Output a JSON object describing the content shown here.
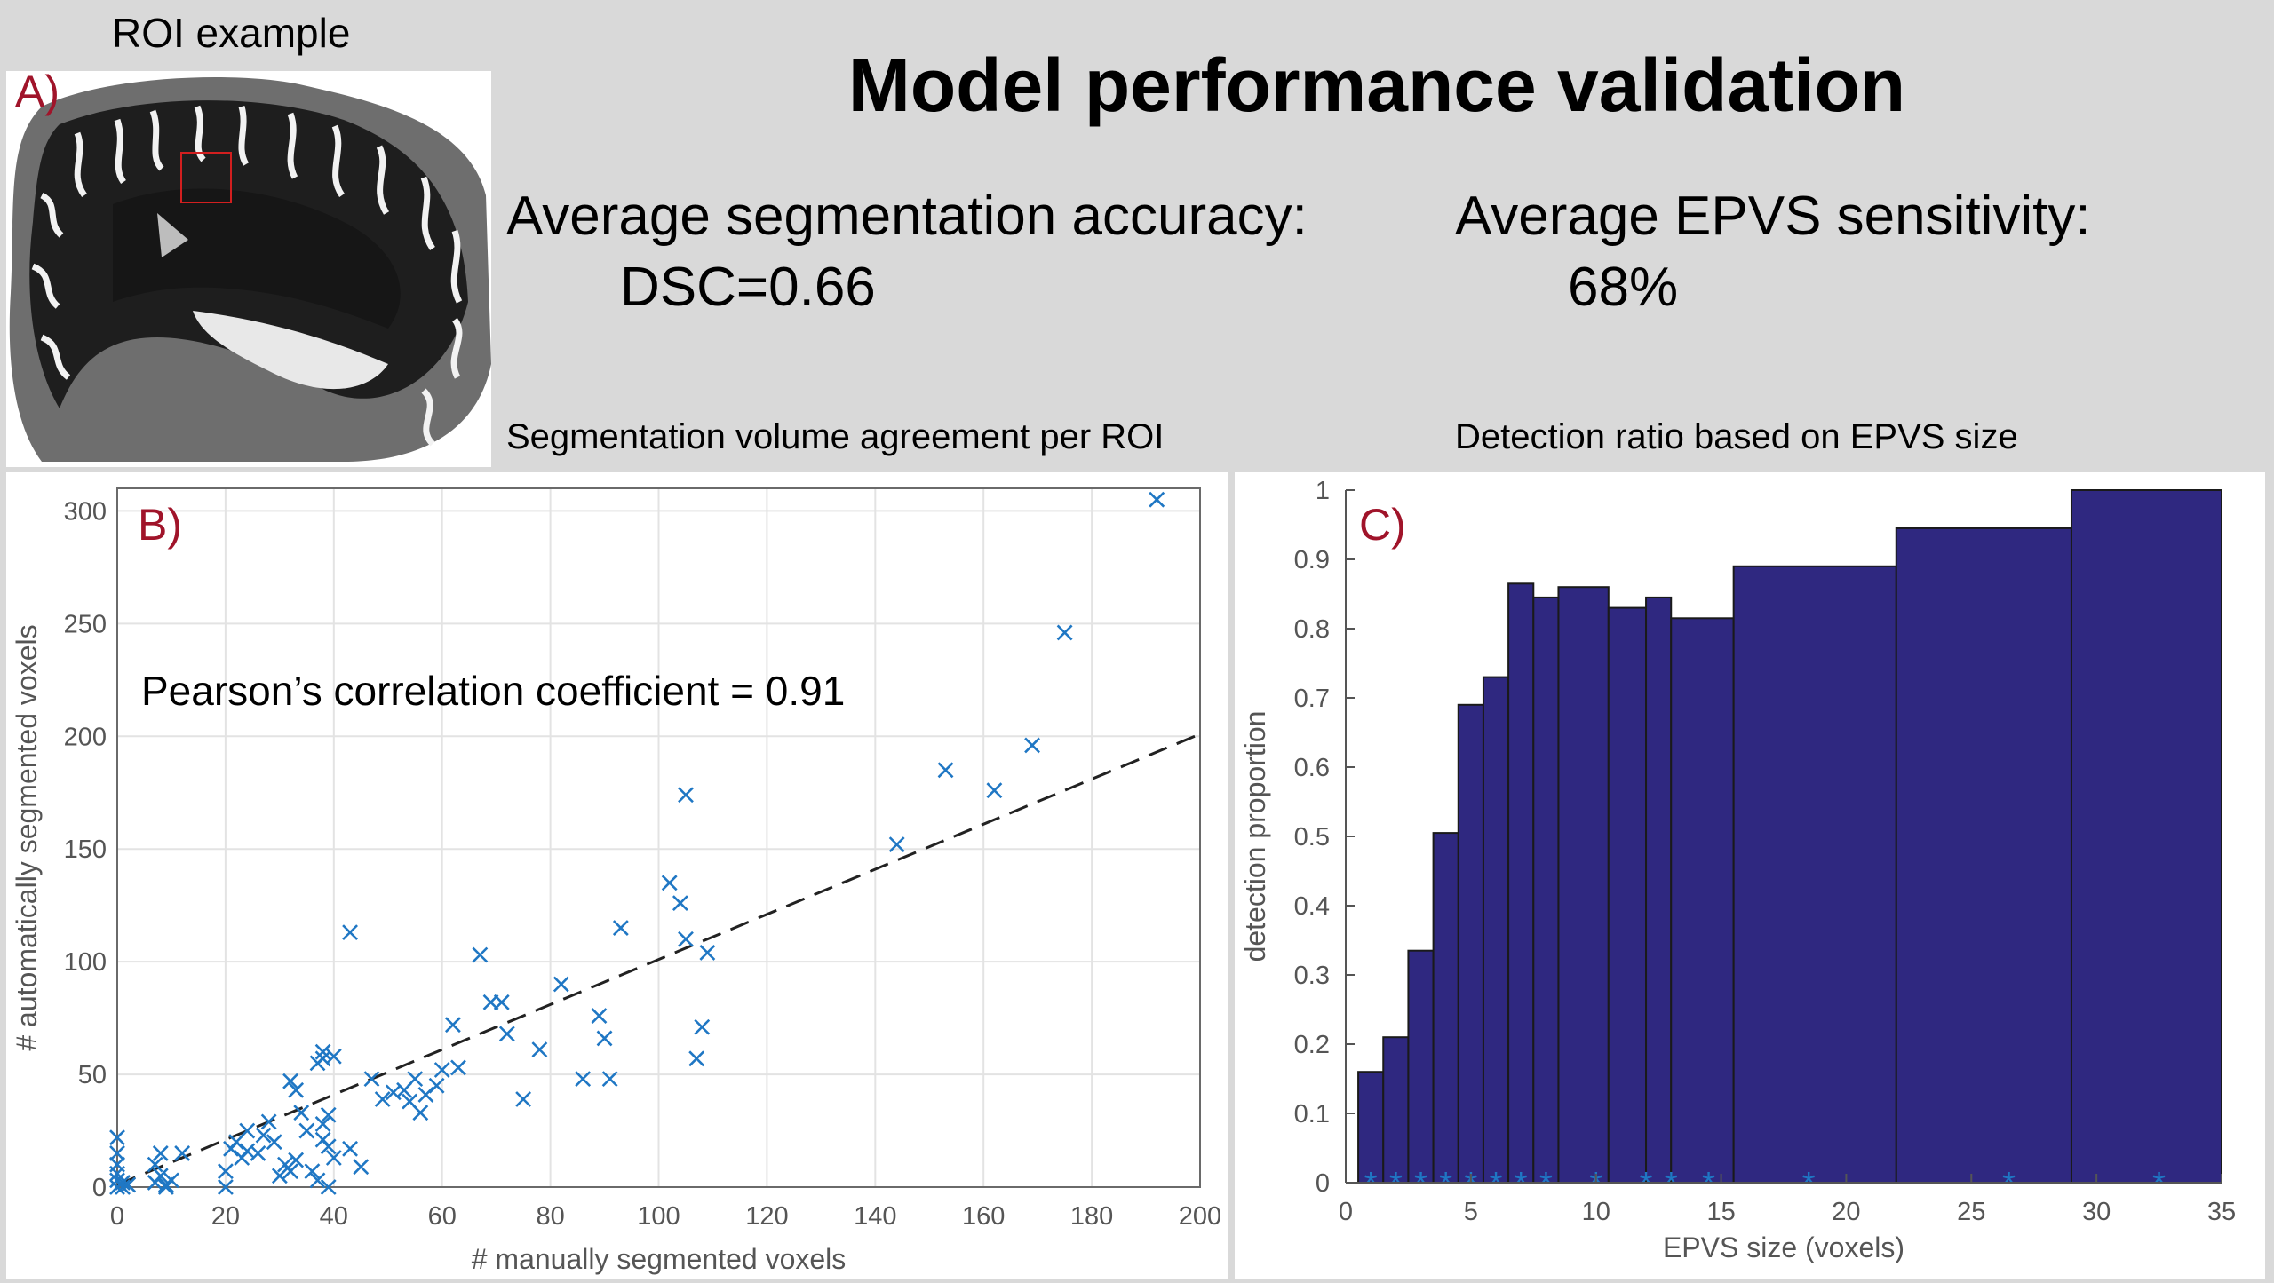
{
  "header": {
    "roi_caption": "ROI example",
    "title": "Model performance validation",
    "accuracy_label": "Average segmentation accuracy:",
    "accuracy_value": "DSC=0.66",
    "sensitivity_label": "Average EPVS sensitivity:",
    "sensitivity_value": "68%",
    "scatter_subtitle": "Segmentation volume agreement per ROI",
    "bar_subtitle": "Detection ratio based on EPVS size"
  },
  "panels": {
    "a": "A)",
    "b": "B)",
    "c": "C)"
  },
  "colors": {
    "marker": "#1f77c4",
    "bar_fill": "#2f2880",
    "panel_letter": "#a0142a"
  },
  "chart_data": [
    {
      "type": "scatter",
      "title": "Segmentation volume agreement per ROI",
      "xlabel": "# manually segmented voxels",
      "ylabel": "# automatically segmented voxels",
      "xlim": [
        0,
        200
      ],
      "ylim": [
        0,
        310
      ],
      "xticks": [
        0,
        20,
        40,
        60,
        80,
        100,
        120,
        140,
        160,
        180,
        200
      ],
      "yticks": [
        0,
        50,
        100,
        150,
        200,
        250,
        300
      ],
      "annotation": "Pearson’s correlation coefficient = 0.91",
      "fit_line": {
        "slope": 1.0,
        "intercept": 1
      },
      "points": [
        [
          0,
          0
        ],
        [
          0,
          3
        ],
        [
          0,
          6
        ],
        [
          0,
          10
        ],
        [
          0,
          15
        ],
        [
          0,
          22
        ],
        [
          1,
          0
        ],
        [
          1,
          2
        ],
        [
          2,
          1
        ],
        [
          7,
          2
        ],
        [
          7,
          10
        ],
        [
          8,
          15
        ],
        [
          8,
          5
        ],
        [
          9,
          1
        ],
        [
          9,
          0
        ],
        [
          10,
          3
        ],
        [
          12,
          15
        ],
        [
          20,
          0
        ],
        [
          20,
          7
        ],
        [
          21,
          17
        ],
        [
          22,
          20
        ],
        [
          23,
          13
        ],
        [
          24,
          25
        ],
        [
          24,
          16
        ],
        [
          26,
          15
        ],
        [
          27,
          23
        ],
        [
          28,
          29
        ],
        [
          29,
          20
        ],
        [
          30,
          5
        ],
        [
          31,
          10
        ],
        [
          32,
          47
        ],
        [
          32,
          7
        ],
        [
          33,
          43
        ],
        [
          33,
          12
        ],
        [
          34,
          33
        ],
        [
          35,
          25
        ],
        [
          36,
          7
        ],
        [
          37,
          55
        ],
        [
          37,
          3
        ],
        [
          38,
          28
        ],
        [
          38,
          21
        ],
        [
          38,
          60
        ],
        [
          38,
          57
        ],
        [
          39,
          0
        ],
        [
          39,
          32
        ],
        [
          39,
          18
        ],
        [
          40,
          58
        ],
        [
          40,
          13
        ],
        [
          43,
          113
        ],
        [
          43,
          17
        ],
        [
          45,
          9
        ],
        [
          47,
          48
        ],
        [
          49,
          39
        ],
        [
          51,
          42
        ],
        [
          53,
          43
        ],
        [
          54,
          38
        ],
        [
          55,
          48
        ],
        [
          56,
          33
        ],
        [
          57,
          41
        ],
        [
          59,
          45
        ],
        [
          60,
          52
        ],
        [
          62,
          72
        ],
        [
          63,
          53
        ],
        [
          67,
          103
        ],
        [
          69,
          82
        ],
        [
          71,
          82
        ],
        [
          72,
          68
        ],
        [
          75,
          39
        ],
        [
          78,
          61
        ],
        [
          82,
          90
        ],
        [
          86,
          48
        ],
        [
          89,
          76
        ],
        [
          90,
          66
        ],
        [
          91,
          48
        ],
        [
          93,
          115
        ],
        [
          102,
          135
        ],
        [
          104,
          126
        ],
        [
          105,
          110
        ],
        [
          105,
          174
        ],
        [
          107,
          57
        ],
        [
          108,
          71
        ],
        [
          109,
          104
        ],
        [
          144,
          152
        ],
        [
          153,
          185
        ],
        [
          162,
          176
        ],
        [
          169,
          196
        ],
        [
          175,
          246
        ],
        [
          192,
          305
        ]
      ]
    },
    {
      "type": "bar",
      "title": "Detection ratio based on EPVS size",
      "xlabel": "EPVS size (voxels)",
      "ylabel": "detection proportion",
      "xlim": [
        0,
        35
      ],
      "ylim": [
        0,
        1
      ],
      "xticks": [
        0,
        5,
        10,
        15,
        20,
        25,
        30,
        35
      ],
      "yticks": [
        0,
        0.1,
        0.2,
        0.3,
        0.4,
        0.5,
        0.6,
        0.7,
        0.8,
        0.9,
        1
      ],
      "bins": [
        {
          "from": 0.5,
          "to": 1.5,
          "value": 0.16
        },
        {
          "from": 1.5,
          "to": 2.5,
          "value": 0.21
        },
        {
          "from": 2.5,
          "to": 3.5,
          "value": 0.335
        },
        {
          "from": 3.5,
          "to": 4.5,
          "value": 0.505
        },
        {
          "from": 4.5,
          "to": 5.5,
          "value": 0.69
        },
        {
          "from": 5.5,
          "to": 6.5,
          "value": 0.73
        },
        {
          "from": 6.5,
          "to": 7.5,
          "value": 0.865
        },
        {
          "from": 7.5,
          "to": 8.5,
          "value": 0.845
        },
        {
          "from": 8.5,
          "to": 10.5,
          "value": 0.86
        },
        {
          "from": 10.5,
          "to": 12,
          "value": 0.83
        },
        {
          "from": 12,
          "to": 13,
          "value": 0.845
        },
        {
          "from": 13,
          "to": 15.5,
          "value": 0.815
        },
        {
          "from": 15.5,
          "to": 22,
          "value": 0.89
        },
        {
          "from": 22,
          "to": 29,
          "value": 0.945
        },
        {
          "from": 29,
          "to": 35,
          "value": 1.0
        }
      ],
      "markers_x": [
        1,
        2,
        3,
        4,
        5,
        6,
        7,
        8,
        10,
        12,
        13,
        14.5,
        18.5,
        26.5,
        32.5
      ]
    }
  ]
}
